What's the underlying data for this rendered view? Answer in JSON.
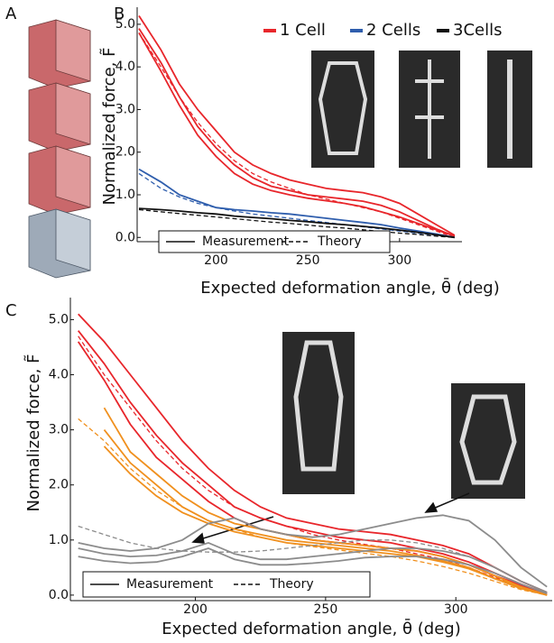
{
  "panel_a_label": "A",
  "chart_data": [
    {
      "type": "line",
      "panel_label": "B",
      "x_label": "Expected deformation angle, θ̄ (deg)",
      "y_label": "Normalized force, F̃",
      "x": [
        158,
        170,
        180,
        190,
        200,
        210,
        220,
        230,
        240,
        250,
        260,
        270,
        280,
        290,
        300,
        310,
        320,
        330
      ],
      "xlim": [
        157,
        334
      ],
      "ylim": [
        -0.1,
        5.4
      ],
      "xticks": [
        200,
        250,
        300
      ],
      "yticks": [
        {
          "value": 0,
          "label": "0.0"
        },
        {
          "value": 1,
          "label": "1.0"
        },
        {
          "value": 2,
          "label": "2.0"
        },
        {
          "value": 3,
          "label": "3.0"
        },
        {
          "value": 4,
          "label": "4.0"
        },
        {
          "value": 5,
          "label": "5.0"
        }
      ],
      "style_legend": {
        "solid": "Measurement",
        "dashed": "Theory"
      },
      "series": [
        {
          "name": "1 Cell",
          "color": "#e8262b",
          "style": "solid",
          "values": [
            5.2,
            4.4,
            3.6,
            3.0,
            2.5,
            2.0,
            1.7,
            1.5,
            1.35,
            1.25,
            1.15,
            1.1,
            1.05,
            0.95,
            0.8,
            0.55,
            0.3,
            0.05
          ]
        },
        {
          "color": "#e8262b",
          "style": "solid",
          "values": [
            4.9,
            4.1,
            3.3,
            2.6,
            2.1,
            1.7,
            1.4,
            1.2,
            1.1,
            1.0,
            0.95,
            0.9,
            0.85,
            0.75,
            0.6,
            0.4,
            0.2,
            0.03
          ]
        },
        {
          "color": "#e8262b",
          "style": "solid",
          "values": [
            4.8,
            3.9,
            3.1,
            2.4,
            1.9,
            1.5,
            1.25,
            1.1,
            1.0,
            0.92,
            0.86,
            0.8,
            0.72,
            0.6,
            0.48,
            0.33,
            0.18,
            0.03
          ]
        },
        {
          "color": "#e8262b",
          "style": "dashed",
          "values": [
            4.8,
            4.0,
            3.3,
            2.7,
            2.2,
            1.8,
            1.5,
            1.3,
            1.15,
            1.0,
            0.9,
            0.8,
            0.7,
            0.6,
            0.45,
            0.3,
            0.15,
            0.0
          ]
        },
        {
          "name": "2 Cells",
          "color": "#2f5ead",
          "style": "solid",
          "values": [
            1.6,
            1.3,
            1.0,
            0.85,
            0.7,
            0.65,
            0.62,
            0.58,
            0.55,
            0.5,
            0.45,
            0.4,
            0.35,
            0.3,
            0.22,
            0.15,
            0.08,
            0.0
          ]
        },
        {
          "color": "#2f5ead",
          "style": "dashed",
          "values": [
            1.5,
            1.15,
            0.95,
            0.8,
            0.7,
            0.62,
            0.55,
            0.5,
            0.45,
            0.4,
            0.35,
            0.3,
            0.25,
            0.2,
            0.15,
            0.1,
            0.05,
            0.0
          ]
        },
        {
          "name": "3Cells",
          "color": "#111111",
          "style": "solid",
          "values": [
            0.68,
            0.65,
            0.62,
            0.58,
            0.55,
            0.5,
            0.47,
            0.44,
            0.4,
            0.37,
            0.33,
            0.3,
            0.26,
            0.22,
            0.17,
            0.12,
            0.06,
            0.0
          ]
        },
        {
          "color": "#111111",
          "style": "dashed",
          "values": [
            0.65,
            0.6,
            0.56,
            0.52,
            0.48,
            0.44,
            0.4,
            0.36,
            0.33,
            0.29,
            0.25,
            0.22,
            0.18,
            0.14,
            0.1,
            0.07,
            0.03,
            0.0
          ]
        }
      ]
    },
    {
      "type": "line",
      "panel_label": "C",
      "x_label": "Expected deformation angle, θ̄ (deg)",
      "y_label": "Normalized force, F̃",
      "x": [
        155,
        165,
        175,
        185,
        195,
        205,
        215,
        225,
        235,
        245,
        255,
        265,
        275,
        285,
        295,
        305,
        315,
        325,
        335
      ],
      "xlim": [
        152,
        337
      ],
      "ylim": [
        -0.1,
        5.4
      ],
      "xticks": [
        200,
        250,
        300
      ],
      "yticks": [
        {
          "value": 0,
          "label": "0.0"
        },
        {
          "value": 1,
          "label": "1.0"
        },
        {
          "value": 2,
          "label": "2.0"
        },
        {
          "value": 3,
          "label": "3.0"
        },
        {
          "value": 4,
          "label": "4.0"
        },
        {
          "value": 5,
          "label": "5.0"
        }
      ],
      "style_legend": {
        "solid": "Measurement",
        "dashed": "Theory"
      },
      "series": [
        {
          "color": "#e8262b",
          "style": "solid",
          "values": [
            5.1,
            4.6,
            4.0,
            3.4,
            2.8,
            2.3,
            1.9,
            1.6,
            1.4,
            1.3,
            1.2,
            1.15,
            1.1,
            1.0,
            0.9,
            0.75,
            0.5,
            0.25,
            0.05
          ]
        },
        {
          "color": "#e8262b",
          "style": "solid",
          "values": [
            4.8,
            4.2,
            3.5,
            2.9,
            2.4,
            2.0,
            1.6,
            1.4,
            1.25,
            1.15,
            1.05,
            1.0,
            0.95,
            0.85,
            0.75,
            0.6,
            0.4,
            0.2,
            0.03
          ]
        },
        {
          "color": "#e8262b",
          "style": "solid",
          "values": [
            4.6,
            3.9,
            3.1,
            2.5,
            2.1,
            1.7,
            1.4,
            1.2,
            1.1,
            1.0,
            0.95,
            0.9,
            0.85,
            0.8,
            0.7,
            0.55,
            0.35,
            0.18,
            0.02
          ]
        },
        {
          "color": "#e8262b",
          "style": "dashed",
          "values": [
            4.7,
            4.0,
            3.4,
            2.8,
            2.3,
            1.9,
            1.6,
            1.4,
            1.25,
            1.1,
            1.0,
            0.92,
            0.85,
            0.75,
            0.65,
            0.5,
            0.32,
            0.15,
            0.0
          ]
        },
        {
          "color": "#f0901e",
          "style": "solid",
          "values": [
            null,
            3.4,
            2.6,
            2.2,
            1.8,
            1.5,
            1.3,
            1.2,
            1.1,
            1.0,
            0.95,
            0.9,
            0.85,
            0.8,
            0.7,
            0.55,
            0.35,
            0.15,
            0.0
          ]
        },
        {
          "color": "#f0901e",
          "style": "solid",
          "values": [
            null,
            3.0,
            2.4,
            2.0,
            1.6,
            1.35,
            1.2,
            1.1,
            1.0,
            0.95,
            0.9,
            0.85,
            0.8,
            0.72,
            0.62,
            0.5,
            0.3,
            0.15,
            0.0
          ]
        },
        {
          "color": "#f0901e",
          "style": "solid",
          "values": [
            null,
            2.7,
            2.2,
            1.8,
            1.5,
            1.3,
            1.15,
            1.05,
            0.95,
            0.9,
            0.85,
            0.8,
            0.75,
            0.7,
            0.6,
            0.48,
            0.3,
            0.12,
            0.0
          ]
        },
        {
          "color": "#f0901e",
          "style": "dashed",
          "values": [
            3.2,
            2.8,
            2.3,
            1.9,
            1.6,
            1.35,
            1.2,
            1.05,
            0.95,
            0.88,
            0.82,
            0.76,
            0.7,
            0.62,
            0.52,
            0.4,
            0.25,
            0.1,
            0.0
          ]
        },
        {
          "color": "#8c8c8c",
          "style": "solid",
          "values": [
            0.95,
            0.85,
            0.8,
            0.85,
            1.0,
            1.3,
            1.4,
            1.2,
            1.1,
            1.05,
            1.1,
            1.2,
            1.3,
            1.4,
            1.45,
            1.35,
            1.0,
            0.5,
            0.15
          ]
        },
        {
          "color": "#8c8c8c",
          "style": "solid",
          "values": [
            0.85,
            0.75,
            0.7,
            0.72,
            0.8,
            0.95,
            0.75,
            0.65,
            0.65,
            0.7,
            0.75,
            0.8,
            0.85,
            0.85,
            0.8,
            0.7,
            0.5,
            0.25,
            0.05
          ]
        },
        {
          "color": "#8c8c8c",
          "style": "solid",
          "values": [
            0.7,
            0.62,
            0.58,
            0.6,
            0.7,
            0.85,
            0.65,
            0.55,
            0.55,
            0.58,
            0.62,
            0.68,
            0.7,
            0.7,
            0.65,
            0.55,
            0.4,
            0.2,
            0.03
          ]
        },
        {
          "color": "#8c8c8c",
          "style": "dashed",
          "values": [
            1.25,
            1.1,
            0.95,
            0.85,
            0.8,
            0.78,
            0.78,
            0.8,
            0.85,
            0.9,
            0.95,
            1.0,
            1.0,
            0.95,
            0.85,
            0.7,
            0.5,
            0.25,
            0.05
          ]
        }
      ]
    }
  ]
}
